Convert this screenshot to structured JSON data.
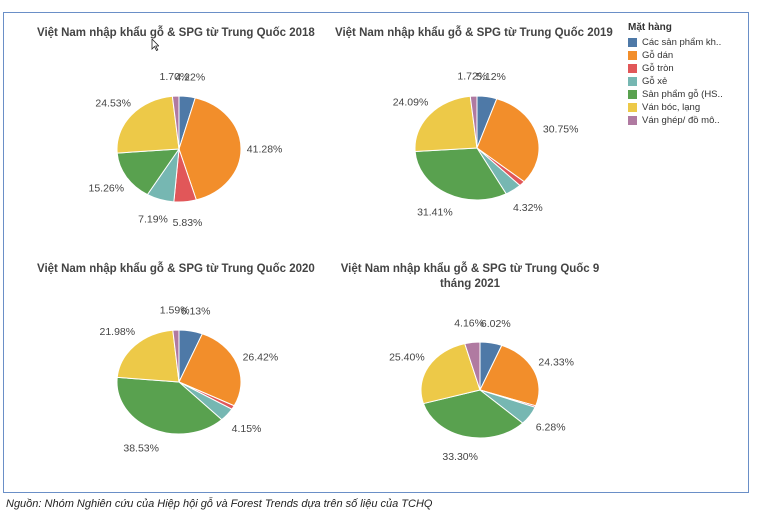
{
  "legend": {
    "title": "Mặt hàng",
    "items": [
      {
        "label": "Các sản phẩm kh..",
        "color": "#4e79a7"
      },
      {
        "label": "Gỗ dán",
        "color": "#f28e2b"
      },
      {
        "label": "Gỗ tròn",
        "color": "#e15759"
      },
      {
        "label": "Gỗ xẻ",
        "color": "#76b7b2"
      },
      {
        "label": "Sản phẩm gỗ (HS..",
        "color": "#59a14f"
      },
      {
        "label": "Ván bóc, lạng",
        "color": "#edc948"
      },
      {
        "label": "Ván ghép/ đồ mô..",
        "color": "#b07aa1"
      }
    ]
  },
  "source_note": "Nguồn: Nhóm Nghiên cứu của Hiệp hội gỗ và Forest Trends dựa trên số liệu của TCHQ",
  "chart_data": [
    {
      "type": "pie",
      "title": "Việt Nam nhập khẩu gỗ & SPG từ Trung Quốc 2018",
      "categories": [
        "Các sản phẩm kh..",
        "Gỗ dán",
        "Gỗ tròn",
        "Gỗ xẻ",
        "Sản phẩm gỗ (HS..",
        "Ván bóc, lạng",
        "Ván ghép/ đồ mô.."
      ],
      "values": [
        4.22,
        41.28,
        5.83,
        7.19,
        15.26,
        24.53,
        1.7
      ],
      "labels": [
        "4.22%",
        "41.28%",
        "5.83%",
        "7.19%",
        "15.26%",
        "24.53%",
        "1.70%"
      ]
    },
    {
      "type": "pie",
      "title": "Việt Nam nhập khẩu gỗ & SPG từ Trung Quốc 2019",
      "categories": [
        "Các sản phẩm kh..",
        "Gỗ dán",
        "Gỗ tròn",
        "Gỗ xẻ",
        "Sản phẩm gỗ (HS..",
        "Ván bóc, lạng",
        "Ván ghép/ đồ mô.."
      ],
      "values": [
        5.12,
        30.75,
        1.59,
        4.32,
        31.41,
        24.09,
        1.72
      ],
      "labels": [
        "5.12%",
        "30.75%",
        "",
        "4.32%",
        "31.41%",
        "24.09%",
        "1.72%"
      ]
    },
    {
      "type": "pie",
      "title": "Việt Nam nhập khẩu gỗ & SPG từ Trung Quốc 2020",
      "categories": [
        "Các sản phẩm kh..",
        "Gỗ dán",
        "Gỗ tròn",
        "Gỗ xẻ",
        "Sản phẩm gỗ (HS..",
        "Ván bóc, lạng",
        "Ván ghép/ đồ mô.."
      ],
      "values": [
        6.13,
        26.42,
        1.2,
        4.15,
        38.53,
        21.98,
        1.59
      ],
      "labels": [
        "6.13%",
        "26.42%",
        "",
        "4.15%",
        "38.53%",
        "21.98%",
        "1.59%"
      ]
    },
    {
      "type": "pie",
      "title": "Việt Nam nhập khẩu gỗ & SPG từ Trung Quốc 9 tháng 2021",
      "categories": [
        "Các sản phẩm kh..",
        "Gỗ dán",
        "Gỗ tròn",
        "Gỗ xẻ",
        "Sản phẩm gỗ (HS..",
        "Ván bóc, lạng",
        "Ván ghép/ đồ mô.."
      ],
      "values": [
        6.02,
        24.33,
        0.51,
        6.28,
        33.3,
        25.4,
        4.16
      ],
      "labels": [
        "6.02%",
        "24.33%",
        "",
        "6.28%",
        "33.30%",
        "25.40%",
        "4.16%"
      ]
    }
  ]
}
